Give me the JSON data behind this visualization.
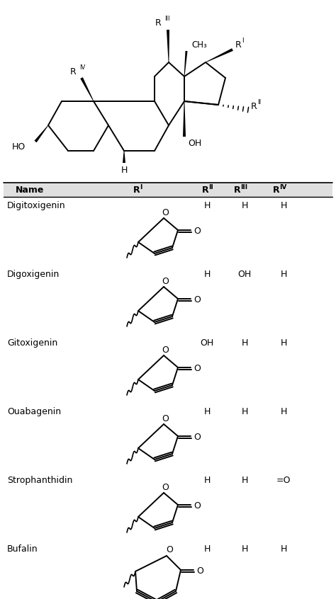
{
  "compounds": [
    {
      "name": "Digitoxigenin",
      "r2": "H",
      "r3": "H",
      "r4": "H",
      "ring": 5
    },
    {
      "name": "Digoxigenin",
      "r2": "H",
      "r3": "OH",
      "r4": "H",
      "ring": 5
    },
    {
      "name": "Gitoxigenin",
      "r2": "OH",
      "r3": "H",
      "r4": "H",
      "ring": 5
    },
    {
      "name": "Ouabagenin",
      "r2": "H",
      "r3": "H",
      "r4": "H",
      "ring": 5
    },
    {
      "name": "Strophanthidin",
      "r2": "H",
      "r3": "H",
      "r4": "=O",
      "ring": 5
    },
    {
      "name": "Bufalin",
      "r2": "H",
      "r3": "H",
      "r4": "H",
      "ring": 6
    }
  ],
  "bg": "#ffffff"
}
